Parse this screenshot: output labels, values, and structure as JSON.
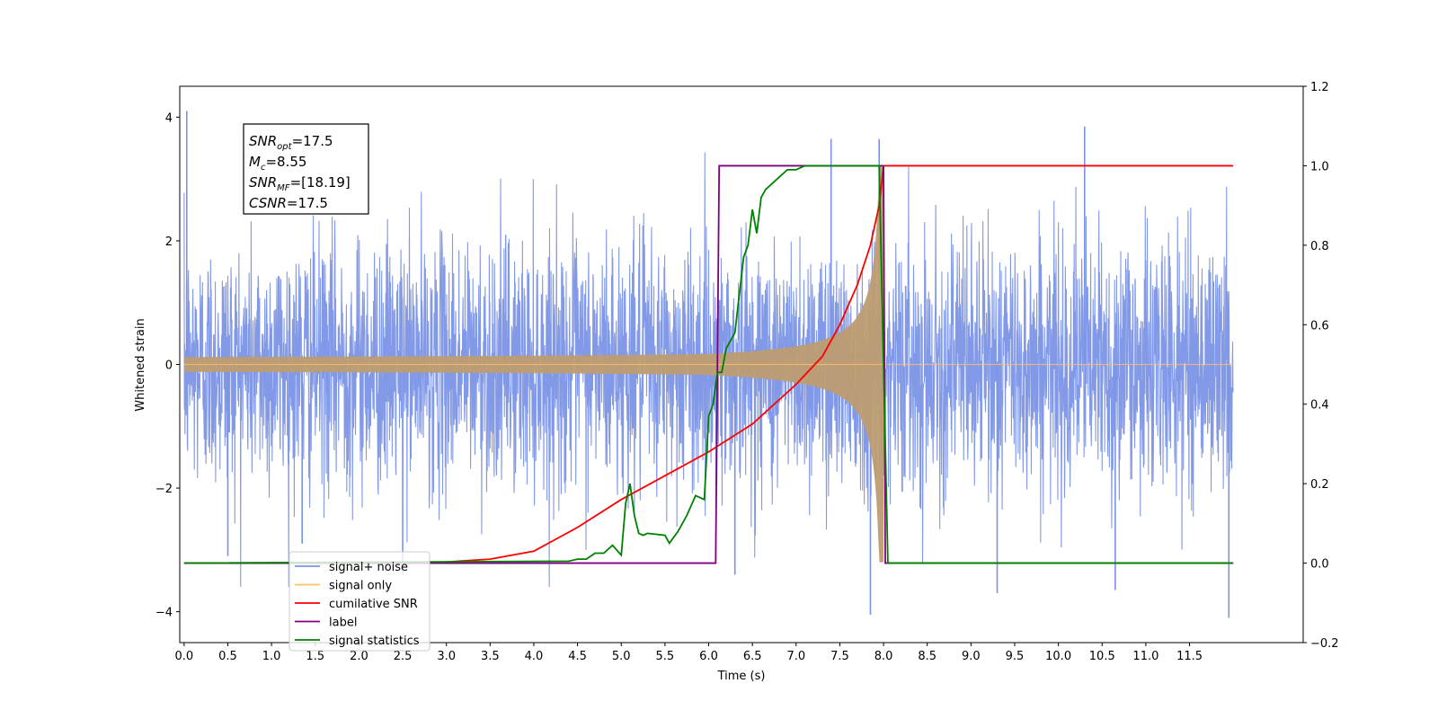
{
  "chart_data": {
    "type": "line",
    "xlabel": "Time (s)",
    "ylabel": "Whitened strain",
    "xlim": [
      -0.05,
      12.8
    ],
    "x_ticks": [
      0.0,
      0.5,
      1.0,
      1.5,
      2.0,
      2.5,
      3.0,
      3.5,
      4.0,
      4.5,
      5.0,
      5.5,
      6.0,
      6.5,
      7.0,
      7.5,
      8.0,
      8.5,
      9.0,
      9.5,
      10.0,
      10.5,
      11.0,
      11.5
    ],
    "x_tick_labels": [
      "0.0",
      "0.5",
      "1.0",
      "1.5",
      "2.0",
      "2.5",
      "3.0",
      "3.5",
      "4.0",
      "4.5",
      "5.0",
      "5.5",
      "6.0",
      "6.5",
      "7.0",
      "7.5",
      "8.0",
      "8.5",
      "9.0",
      "9.5",
      "10.0",
      "10.5",
      "11.0",
      "11.5"
    ],
    "ylim_left": [
      -4.5,
      4.5
    ],
    "y_ticks_left": [
      -4,
      -2,
      0,
      2,
      4
    ],
    "y_tick_labels_left": [
      "−4",
      "−2",
      "0",
      "2",
      "4"
    ],
    "ylim_right": [
      -0.2,
      1.2
    ],
    "y_ticks_right": [
      -0.2,
      0.0,
      0.2,
      0.4,
      0.6,
      0.8,
      1.0,
      1.2
    ],
    "y_tick_labels_right": [
      "−0.2",
      "0.0",
      "0.2",
      "0.4",
      "0.6",
      "0.8",
      "1.0",
      "1.2"
    ],
    "grid": false,
    "annotation": {
      "lines": [
        {
          "base": "SNR",
          "sub": "opt",
          "rest": "=17.5"
        },
        {
          "base": "M",
          "sub": "c",
          "rest": "=8.55"
        },
        {
          "base": "SNR",
          "sub": "MF",
          "rest": "=[18.19]"
        },
        {
          "base": "CSNR",
          "sub": "",
          "rest": "=17.5"
        }
      ],
      "position": "top-left"
    },
    "legend": {
      "position": "lower-left",
      "entries": [
        {
          "label": "signal+ noise",
          "color": "#7b93e6"
        },
        {
          "label": "signal only",
          "color": "#ffc266"
        },
        {
          "label": "cumilative SNR",
          "color": "#ff0000"
        },
        {
          "label": "label",
          "color": "#800080"
        },
        {
          "label": "signal statistics",
          "color": "#008000"
        }
      ]
    },
    "series": [
      {
        "name": "signal+ noise",
        "axis": "left",
        "color": "#7b93e6",
        "description_values": {
          "x_range": [
            0.0,
            12.0
          ],
          "amplitude_std": 1.0,
          "peak_max": 4.1,
          "peak_min": -4.1
        },
        "spikes": [
          {
            "x": 0.03,
            "y": 4.1
          },
          {
            "x": 0.5,
            "y": -3.1
          },
          {
            "x": 7.95,
            "y": 3.65
          },
          {
            "x": 7.4,
            "y": 3.65
          },
          {
            "x": 10.3,
            "y": 3.85
          },
          {
            "x": 7.85,
            "y": -4.05
          },
          {
            "x": 11.95,
            "y": -4.1
          },
          {
            "x": 9.3,
            "y": -3.7
          },
          {
            "x": 10.65,
            "y": -3.65
          },
          {
            "x": 1.35,
            "y": -2.9
          },
          {
            "x": 2.5,
            "y": -3.4
          },
          {
            "x": 6.3,
            "y": -3.4
          }
        ]
      },
      {
        "name": "signal only",
        "axis": "left",
        "color": "#ffc266",
        "chirp": {
          "t_start": 0.0,
          "t_merge": 8.0,
          "t_end": 12.0,
          "amp_at_merge": 3.2
        }
      },
      {
        "name": "cumilative SNR",
        "axis": "right",
        "color": "#ff0000",
        "x": [
          0.0,
          2.5,
          3.0,
          3.5,
          4.0,
          4.5,
          5.0,
          5.5,
          6.0,
          6.5,
          7.0,
          7.3,
          7.5,
          7.7,
          7.85,
          7.95,
          8.0,
          12.0
        ],
        "values": [
          0.0,
          0.0,
          0.003,
          0.01,
          0.03,
          0.09,
          0.16,
          0.22,
          0.28,
          0.35,
          0.45,
          0.52,
          0.6,
          0.7,
          0.8,
          0.9,
          1.0,
          1.0
        ]
      },
      {
        "name": "label",
        "axis": "right",
        "color": "#800080",
        "x": [
          0.0,
          6.08,
          6.12,
          8.0,
          8.02,
          12.0
        ],
        "values": [
          0.0,
          0.0,
          1.0,
          1.0,
          0.0,
          0.0
        ]
      },
      {
        "name": "signal statistics",
        "axis": "right",
        "color": "#008000",
        "x": [
          0.0,
          4.4,
          4.5,
          4.6,
          4.7,
          4.8,
          4.9,
          5.0,
          5.05,
          5.1,
          5.15,
          5.2,
          5.25,
          5.3,
          5.5,
          5.55,
          5.65,
          5.75,
          5.85,
          5.95,
          6.0,
          6.05,
          6.1,
          6.15,
          6.2,
          6.3,
          6.4,
          6.45,
          6.5,
          6.55,
          6.6,
          6.65,
          6.7,
          6.8,
          6.9,
          7.0,
          7.1,
          7.2,
          7.3,
          7.5,
          7.95,
          8.05,
          12.0
        ],
        "values": [
          0.0,
          0.005,
          0.01,
          0.01,
          0.025,
          0.025,
          0.045,
          0.02,
          0.15,
          0.2,
          0.12,
          0.075,
          0.07,
          0.075,
          0.07,
          0.05,
          0.08,
          0.12,
          0.17,
          0.16,
          0.37,
          0.4,
          0.48,
          0.48,
          0.54,
          0.58,
          0.77,
          0.8,
          0.89,
          0.83,
          0.92,
          0.94,
          0.95,
          0.97,
          0.99,
          0.99,
          1.0,
          1.0,
          1.0,
          1.0,
          1.0,
          0.0,
          0.0
        ]
      }
    ]
  }
}
